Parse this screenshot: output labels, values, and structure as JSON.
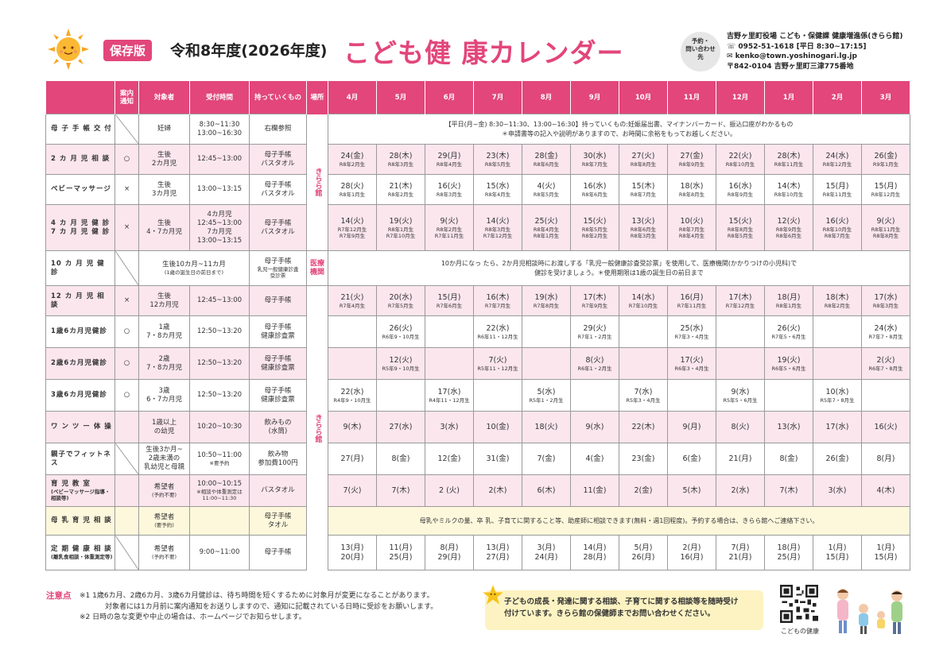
{
  "header": {
    "badge": "保存版",
    "year": "令和8年度(2026年度)",
    "title": "こども健 康カレンダー",
    "contact_circle": [
      "予約・",
      "問い合わせ",
      "先"
    ],
    "contact_lines": [
      "吉野ヶ里町役場 こども・保健課 健康増進係(きらら館)",
      "☏ 0952-51-1618 [平日 8:30~17:15]",
      "✉ kenko@town.yoshinogari.lg.jp",
      "〒842-0104 吉野ヶ里町三津775番地"
    ]
  },
  "columns": [
    "案内\n通知",
    "対象者",
    "受付時間",
    "持っていくもの",
    "場所",
    "4月",
    "5月",
    "6月",
    "7月",
    "8月",
    "9月",
    "10月",
    "11月",
    "12月",
    "1月",
    "2月",
    "3月"
  ],
  "places": {
    "kirara": "きらら館",
    "iryo": "医療\n機関"
  },
  "rows": [
    {
      "name": "母 子 手 帳 交 付",
      "notice": "",
      "target": "妊婦",
      "time": "8:30~11:30\n13:00~16:30",
      "items": "右欄参照",
      "span": "【平日(月~金) 8:30~11:30、13:00~16:30】持っていくもの:妊娠届出書、マイナンバーカード、振込口座がわかるもの\n＊申請書等の記入や説明がありますので、お時間に余裕をもってお越しください。"
    },
    {
      "name": "2 カ 月 児 相 談",
      "notice": "○",
      "target": "生後\n2カ月児",
      "time": "12:45~13:00",
      "items": "母子手帳\nバスタオル",
      "months": [
        [
          "24(金)",
          "R8年2月生"
        ],
        [
          "28(木)",
          "R8年3月生"
        ],
        [
          "29(月)",
          "R8年4月生"
        ],
        [
          "23(木)",
          "R8年5月生"
        ],
        [
          "28(金)",
          "R8年6月生"
        ],
        [
          "30(水)",
          "R8年7月生"
        ],
        [
          "27(火)",
          "R8年8月生"
        ],
        [
          "27(金)",
          "R8年9月生"
        ],
        [
          "22(火)",
          "R8年10月生"
        ],
        [
          "28(木)",
          "R8年11月生"
        ],
        [
          "24(水)",
          "R8年12月生"
        ],
        [
          "26(金)",
          "R9年1月生"
        ]
      ]
    },
    {
      "name": "ベビーマッサージ",
      "notice": "×",
      "target": "生後\n3カ月児",
      "time": "13:00~13:15",
      "items": "母子手帳\nバスタオル",
      "months": [
        [
          "28(火)",
          "R8年1月生"
        ],
        [
          "21(木)",
          "R8年2月生"
        ],
        [
          "16(火)",
          "R8年3月生"
        ],
        [
          "15(水)",
          "R8年4月生"
        ],
        [
          "4(火)",
          "R8年5月生"
        ],
        [
          "16(水)",
          "R8年6月生"
        ],
        [
          "15(木)",
          "R8年7月生"
        ],
        [
          "18(水)",
          "R8年8月生"
        ],
        [
          "16(水)",
          "R8年9月生"
        ],
        [
          "14(木)",
          "R8年10月生"
        ],
        [
          "15(月)",
          "R8年11月生"
        ],
        [
          "15(月)",
          "R8年12月生"
        ]
      ]
    },
    {
      "name": "4 カ 月 児 健 診\n7 カ 月 児 健 診",
      "notice": "×",
      "target": "生後\n4・7カ月児",
      "time": "4カ月児\n12:45~13:00\n7カ月児\n13:00~13:15",
      "items": "母子手帳\nバスタオル",
      "months": [
        [
          "14(火)",
          "R7年12月生\nR7年9月生"
        ],
        [
          "19(火)",
          "R8年1月生\nR7年10月生"
        ],
        [
          "9(火)",
          "R8年2月生\nR7年11月生"
        ],
        [
          "14(火)",
          "R8年3月生\nR7年12月生"
        ],
        [
          "25(火)",
          "R8年4月生\nR8年1月生"
        ],
        [
          "15(火)",
          "R8年5月生\nR8年2月生"
        ],
        [
          "13(火)",
          "R8年6月生\nR8年3月生"
        ],
        [
          "10(火)",
          "R8年7月生\nR8年4月生"
        ],
        [
          "15(火)",
          "R8年8月生\nR8年5月生"
        ],
        [
          "12(火)",
          "R8年9月生\nR8年6月生"
        ],
        [
          "16(火)",
          "R8年10月生\nR8年7月生"
        ],
        [
          "9(火)",
          "R8年11月生\nR8年8月生"
        ]
      ]
    },
    {
      "name": "10 カ 月 児 健 診",
      "notice": "",
      "target": "生後10カ月~11カ月",
      "target_sub": "(1歳の誕生日の前日まで)",
      "time": "",
      "items": "母子手帳",
      "items_sub": "乳児一般健康診査\n受診票",
      "span": "10か月になっ たら、2か月児相談時にお渡しする「乳児一般健康診査受診票」を使用して、医療機関(かかりつけの小児科)で\n健診を受けましょう。＊使用期限は1歳の誕生日の前日まで"
    },
    {
      "name": "12 カ 月 児 相 談",
      "notice": "×",
      "target": "生後\n12カ月児",
      "time": "12:45~13:00",
      "items": "母子手帳",
      "months": [
        [
          "21(火)",
          "R7年4月生"
        ],
        [
          "20(水)",
          "R7年5月生"
        ],
        [
          "15(月)",
          "R7年6月生"
        ],
        [
          "16(木)",
          "R7年7月生"
        ],
        [
          "19(水)",
          "R7年8月生"
        ],
        [
          "17(木)",
          "R7年9月生"
        ],
        [
          "14(水)",
          "R7年10月生"
        ],
        [
          "16(月)",
          "R7年11月生"
        ],
        [
          "17(木)",
          "R7年12月生"
        ],
        [
          "18(月)",
          "R8年1月生"
        ],
        [
          "18(木)",
          "R8年2月生"
        ],
        [
          "17(水)",
          "R8年3月生"
        ]
      ]
    },
    {
      "name": "1歳6カ月児健診",
      "notice": "○",
      "target": "1歳\n7・8カ月児",
      "time": "12:50~13:20",
      "items": "母子手帳\n健康診査票",
      "months": [
        [
          "",
          ""
        ],
        [
          "26(火)",
          "R6年9・10月生"
        ],
        [
          "",
          ""
        ],
        [
          "22(水)",
          "R6年11・12月生"
        ],
        [
          "",
          ""
        ],
        [
          "29(火)",
          "R7年1・2月生"
        ],
        [
          "",
          ""
        ],
        [
          "25(水)",
          "R7年3・4月生"
        ],
        [
          "",
          ""
        ],
        [
          "26(火)",
          "R7年5・6月生"
        ],
        [
          "",
          ""
        ],
        [
          "24(水)",
          "R7年7・8月生"
        ]
      ]
    },
    {
      "name": "2歳6カ月児健診",
      "notice": "○",
      "target": "2歳\n7・8カ月児",
      "time": "12:50~13:20",
      "items": "母子手帳\n健康診査票",
      "months": [
        [
          "",
          ""
        ],
        [
          "12(火)",
          "R5年9・10月生"
        ],
        [
          "",
          ""
        ],
        [
          "7(火)",
          "R5年11・12月生"
        ],
        [
          "",
          ""
        ],
        [
          "8(火)",
          "R6年1・2月生"
        ],
        [
          "",
          ""
        ],
        [
          "17(火)",
          "R6年3・4月生"
        ],
        [
          "",
          ""
        ],
        [
          "19(火)",
          "R6年5・6月生"
        ],
        [
          "",
          ""
        ],
        [
          "2(火)",
          "R6年7・8月生"
        ]
      ]
    },
    {
      "name": "3歳6カ月児健診",
      "notice": "○",
      "target": "3歳\n6・7カ月児",
      "time": "12:50~13:20",
      "items": "母子手帳\n健康診査票",
      "months": [
        [
          "22(水)",
          "R4年9・10月生"
        ],
        [
          "",
          ""
        ],
        [
          "17(水)",
          "R4年11・12月生"
        ],
        [
          "",
          ""
        ],
        [
          "5(水)",
          "R5年1・2月生"
        ],
        [
          "",
          ""
        ],
        [
          "7(水)",
          "R5年3・4月生"
        ],
        [
          "",
          ""
        ],
        [
          "9(水)",
          "R5年5・6月生"
        ],
        [
          "",
          ""
        ],
        [
          "10(水)",
          "R5年7・8月生"
        ],
        [
          "",
          ""
        ]
      ]
    },
    {
      "name": "ワ ン ツ ー 体 操",
      "notice": "",
      "target": "1歳以上\nの幼児",
      "time": "10:20~10:30",
      "items": "飲みもの\n(水筒)",
      "months": [
        [
          "9(木)",
          ""
        ],
        [
          "27(水)",
          ""
        ],
        [
          "3(水)",
          ""
        ],
        [
          "10(金)",
          ""
        ],
        [
          "18(火)",
          ""
        ],
        [
          "9(水)",
          ""
        ],
        [
          "22(木)",
          ""
        ],
        [
          "9(月)",
          ""
        ],
        [
          "8(火)",
          ""
        ],
        [
          "13(水)",
          ""
        ],
        [
          "17(水)",
          ""
        ],
        [
          "16(火)",
          ""
        ]
      ]
    },
    {
      "name": "親子でフィットネス",
      "notice": "",
      "target": "生後3か月~\n2歳未満の\n乳幼児と母親",
      "time": "10:50~11:00",
      "time_sub": "※要予約",
      "items": "飲み物\n参加費100円",
      "months": [
        [
          "27(月)",
          ""
        ],
        [
          "8(金)",
          ""
        ],
        [
          "12(金)",
          ""
        ],
        [
          "31(金)",
          ""
        ],
        [
          "7(金)",
          ""
        ],
        [
          "4(金)",
          ""
        ],
        [
          "23(金)",
          ""
        ],
        [
          "6(金)",
          ""
        ],
        [
          "21(月)",
          ""
        ],
        [
          "8(金)",
          ""
        ],
        [
          "26(金)",
          ""
        ],
        [
          "8(月)",
          ""
        ]
      ]
    },
    {
      "name": "育 児 教 室",
      "name_sub": "(ベビーマッサージ指導・相談等)",
      "notice": "",
      "target": "希望者",
      "target_sub": "(予約不要)",
      "time": "10:00~10:15",
      "time_sub": "※相談や体重測定は11:00~11:30",
      "items": "バスタオル",
      "months": [
        [
          "7(火)",
          ""
        ],
        [
          "7(木)",
          ""
        ],
        [
          "2 (火)",
          ""
        ],
        [
          "2(木)",
          ""
        ],
        [
          "6(木)",
          ""
        ],
        [
          "11(金)",
          ""
        ],
        [
          "2(金)",
          ""
        ],
        [
          "5(木)",
          ""
        ],
        [
          "2(水)",
          ""
        ],
        [
          "7(木)",
          ""
        ],
        [
          "3(水)",
          ""
        ],
        [
          "4(木)",
          ""
        ]
      ]
    },
    {
      "name": "母 乳 育 児 相 談",
      "notice": "",
      "target": "希望者",
      "target_sub": "(要予約)",
      "time": "",
      "items": "母子手帳\nタオル",
      "span": "母乳やミルクの量、卒 乳、子育てに関すること等、助産師に相談できます(無料・週1回程度)。予約する場合は、きらら館へご連絡下さい。"
    },
    {
      "name": "定 期 健 康 相 談",
      "name_sub": "(離乳食相談・体重測定等)",
      "notice": "",
      "target": "希望者",
      "target_sub": "(予約不要)",
      "time": "9:00~11:00",
      "items": "母子手帳",
      "months": [
        [
          "13(月)\n20(月)",
          ""
        ],
        [
          "11(月)\n25(月)",
          ""
        ],
        [
          "8(月)\n29(月)",
          ""
        ],
        [
          "13(月)\n27(月)",
          ""
        ],
        [
          "3(月)\n24(月)",
          ""
        ],
        [
          "14(月)\n28(月)",
          ""
        ],
        [
          "5(月)\n26(月)",
          ""
        ],
        [
          "2(月)\n16(月)",
          ""
        ],
        [
          "7(月)\n21(月)",
          ""
        ],
        [
          "18(月)\n25(月)",
          ""
        ],
        [
          "1(月)\n15(月)",
          ""
        ],
        [
          "1(月)\n15(月)",
          ""
        ]
      ]
    }
  ],
  "notes": {
    "label": "注意点",
    "lines": [
      "※1 1歳6カ月、2歳6カ月、3歳6カ月健診は、待ち時間を短くするために対象月が変更になることがあります。",
      "対象者には1カ月前に案内通知をお送りしますので、通知に記載されている日時に受診をお願いします。",
      "※2 日時の急な変更や中止の場合は、ホームページでお知らせします。"
    ]
  },
  "consult_box": [
    "子どもの成長・発達に関する相談、子育てに関する相談等を随時受け",
    "付けています。きらら館の保健師までお問い合わせください。"
  ],
  "qr_label": "こどもの健康",
  "colors": {
    "accent": "#e2467b",
    "pink_row": "#fbe6ee",
    "yellow_row": "#fdf8dc",
    "box": "#fdf3c2"
  }
}
